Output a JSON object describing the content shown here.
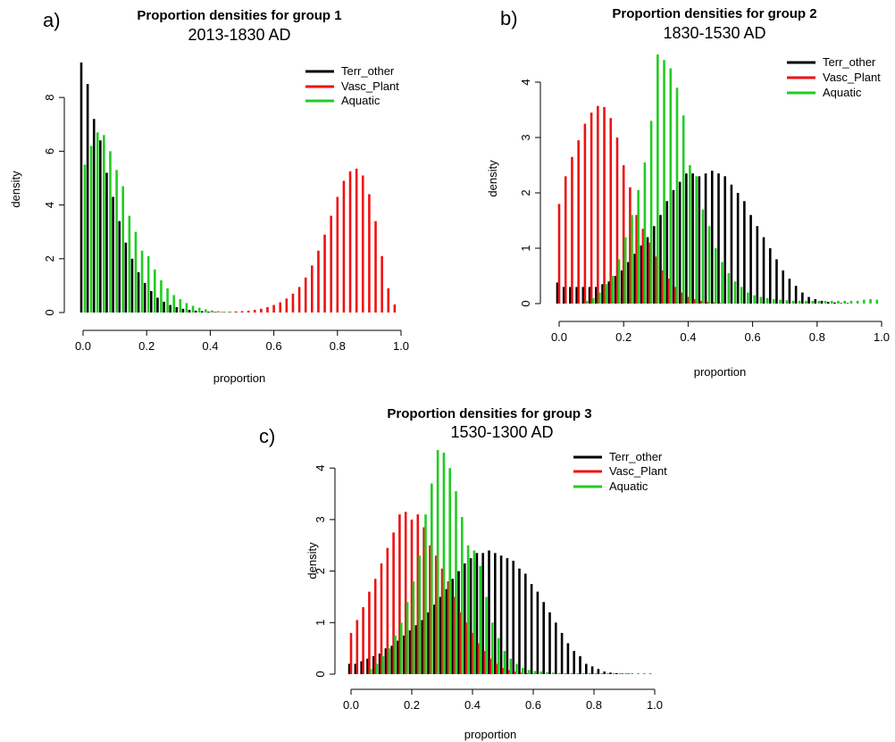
{
  "colors": {
    "Terr_other": "#000000",
    "Vasc_Plant": "#ee1111",
    "Aquatic": "#22cc22"
  },
  "chart_data": [
    {
      "id": "a",
      "type": "bar",
      "panel_label": "a)",
      "title": "Proportion densities for group 1",
      "subtitle": "2013-1830 AD",
      "xlabel": "proportion",
      "ylabel": "density",
      "xlim": [
        0,
        1
      ],
      "ylim": [
        0,
        9.3
      ],
      "xticks": [
        "0.0",
        "0.2",
        "0.4",
        "0.6",
        "0.8",
        "1.0"
      ],
      "yticks": [
        "0",
        "2",
        "4",
        "6",
        "8"
      ],
      "legend": [
        "Terr_other",
        "Vasc_Plant",
        "Aquatic"
      ],
      "legend_position": "top-right",
      "x": [
        0.0,
        0.02,
        0.04,
        0.06,
        0.08,
        0.1,
        0.12,
        0.14,
        0.16,
        0.18,
        0.2,
        0.22,
        0.24,
        0.26,
        0.28,
        0.3,
        0.32,
        0.34,
        0.36,
        0.38,
        0.4,
        0.42,
        0.44,
        0.46,
        0.48,
        0.5,
        0.52,
        0.54,
        0.56,
        0.58,
        0.6,
        0.62,
        0.64,
        0.66,
        0.68,
        0.7,
        0.72,
        0.74,
        0.76,
        0.78,
        0.8,
        0.82,
        0.84,
        0.86,
        0.88,
        0.9,
        0.92,
        0.94,
        0.96,
        0.98
      ],
      "series": [
        {
          "name": "Terr_other",
          "values": [
            9.3,
            8.5,
            7.2,
            6.4,
            5.2,
            4.3,
            3.4,
            2.6,
            2.0,
            1.5,
            1.1,
            0.8,
            0.55,
            0.4,
            0.28,
            0.2,
            0.14,
            0.1,
            0.07,
            0.05,
            0.03,
            0.02,
            0.01,
            0,
            0,
            0,
            0,
            0,
            0,
            0,
            0,
            0,
            0,
            0,
            0,
            0,
            0,
            0,
            0,
            0,
            0,
            0,
            0,
            0,
            0,
            0,
            0,
            0,
            0,
            0
          ]
        },
        {
          "name": "Vasc_Plant",
          "values": [
            0,
            0,
            0,
            0,
            0,
            0,
            0,
            0,
            0,
            0,
            0,
            0,
            0,
            0,
            0,
            0,
            0,
            0,
            0,
            0,
            0.01,
            0.02,
            0.02,
            0.03,
            0.04,
            0.05,
            0.07,
            0.1,
            0.14,
            0.2,
            0.28,
            0.38,
            0.52,
            0.7,
            0.95,
            1.3,
            1.75,
            2.3,
            2.9,
            3.6,
            4.3,
            4.9,
            5.25,
            5.35,
            5.1,
            4.4,
            3.4,
            2.1,
            0.9,
            0.3
          ]
        },
        {
          "name": "Aquatic",
          "values": [
            5.5,
            6.2,
            6.7,
            6.6,
            6.0,
            5.3,
            4.7,
            3.6,
            3.0,
            2.3,
            2.1,
            1.6,
            1.2,
            0.9,
            0.65,
            0.5,
            0.35,
            0.25,
            0.18,
            0.12,
            0.08,
            0.05,
            0.03,
            0.02,
            0.01,
            0,
            0,
            0,
            0,
            0,
            0,
            0,
            0,
            0,
            0,
            0,
            0,
            0,
            0,
            0,
            0,
            0,
            0,
            0,
            0,
            0,
            0,
            0,
            0,
            0
          ]
        }
      ]
    },
    {
      "id": "b",
      "type": "bar",
      "panel_label": "b)",
      "title": "Proportion densities for group 2",
      "subtitle": "1830-1530 AD",
      "xlabel": "proportion",
      "ylabel": "density",
      "xlim": [
        0,
        1
      ],
      "ylim": [
        0,
        4.5
      ],
      "xticks": [
        "0.0",
        "0.2",
        "0.4",
        "0.6",
        "0.8",
        "1.0"
      ],
      "yticks": [
        "0",
        "1",
        "2",
        "3",
        "4"
      ],
      "legend": [
        "Terr_other",
        "Vasc_Plant",
        "Aquatic"
      ],
      "legend_position": "top-right",
      "x": [
        0.0,
        0.02,
        0.04,
        0.06,
        0.08,
        0.1,
        0.12,
        0.14,
        0.16,
        0.18,
        0.2,
        0.22,
        0.24,
        0.26,
        0.28,
        0.3,
        0.32,
        0.34,
        0.36,
        0.38,
        0.4,
        0.42,
        0.44,
        0.46,
        0.48,
        0.5,
        0.52,
        0.54,
        0.56,
        0.58,
        0.6,
        0.62,
        0.64,
        0.66,
        0.68,
        0.7,
        0.72,
        0.74,
        0.76,
        0.78,
        0.8,
        0.82,
        0.84,
        0.86,
        0.88,
        0.9,
        0.92,
        0.94,
        0.96,
        0.98
      ],
      "series": [
        {
          "name": "Terr_other",
          "values": [
            0.38,
            0.3,
            0.3,
            0.3,
            0.3,
            0.3,
            0.3,
            0.35,
            0.4,
            0.5,
            0.6,
            0.75,
            0.9,
            1.05,
            1.2,
            1.4,
            1.6,
            1.85,
            2.05,
            2.2,
            2.35,
            2.35,
            2.3,
            2.35,
            2.4,
            2.35,
            2.3,
            2.15,
            2.0,
            1.85,
            1.6,
            1.4,
            1.2,
            1.0,
            0.8,
            0.6,
            0.45,
            0.32,
            0.2,
            0.12,
            0.08,
            0.05,
            0.03,
            0.02,
            0.01,
            0.01,
            0,
            0,
            0,
            0
          ]
        },
        {
          "name": "Vasc_Plant",
          "values": [
            1.8,
            2.3,
            2.65,
            2.95,
            3.25,
            3.45,
            3.57,
            3.55,
            3.35,
            3.0,
            2.5,
            2.1,
            1.6,
            1.35,
            1.1,
            0.85,
            0.6,
            0.45,
            0.3,
            0.2,
            0.12,
            0.08,
            0.05,
            0.03,
            0.02,
            0.01,
            0,
            0,
            0,
            0,
            0,
            0,
            0,
            0,
            0,
            0,
            0,
            0,
            0,
            0,
            0,
            0,
            0,
            0,
            0,
            0,
            0,
            0,
            0,
            0
          ]
        },
        {
          "name": "Aquatic",
          "values": [
            0,
            0,
            0,
            0,
            0.05,
            0.1,
            0.2,
            0.35,
            0.5,
            0.8,
            1.2,
            1.6,
            2.05,
            2.55,
            3.3,
            4.5,
            4.4,
            4.25,
            3.9,
            3.4,
            2.5,
            2.3,
            1.7,
            1.4,
            1.0,
            0.75,
            0.55,
            0.4,
            0.3,
            0.2,
            0.15,
            0.12,
            0.1,
            0.08,
            0.07,
            0.06,
            0.05,
            0.05,
            0.05,
            0.05,
            0.05,
            0.05,
            0.05,
            0.05,
            0.05,
            0.05,
            0.05,
            0.07,
            0.08,
            0.07
          ]
        }
      ]
    },
    {
      "id": "c",
      "type": "bar",
      "panel_label": "c)",
      "title": "Proportion densities for group 3",
      "subtitle": "1530-1300 AD",
      "xlabel": "proportion",
      "ylabel": "density",
      "xlim": [
        0,
        1
      ],
      "ylim": [
        0,
        4.35
      ],
      "xticks": [
        "0.0",
        "0.2",
        "0.4",
        "0.6",
        "0.8",
        "1.0"
      ],
      "yticks": [
        "0",
        "1",
        "2",
        "3",
        "4"
      ],
      "legend": [
        "Terr_other",
        "Vasc_Plant",
        "Aquatic"
      ],
      "legend_position": "top-right",
      "x": [
        0.0,
        0.02,
        0.04,
        0.06,
        0.08,
        0.1,
        0.12,
        0.14,
        0.16,
        0.18,
        0.2,
        0.22,
        0.24,
        0.26,
        0.28,
        0.3,
        0.32,
        0.34,
        0.36,
        0.38,
        0.4,
        0.42,
        0.44,
        0.46,
        0.48,
        0.5,
        0.52,
        0.54,
        0.56,
        0.58,
        0.6,
        0.62,
        0.64,
        0.66,
        0.68,
        0.7,
        0.72,
        0.74,
        0.76,
        0.78,
        0.8,
        0.82,
        0.84,
        0.86,
        0.88,
        0.9,
        0.92,
        0.94,
        0.96,
        0.98
      ],
      "series": [
        {
          "name": "Terr_other",
          "values": [
            0.2,
            0.2,
            0.25,
            0.3,
            0.35,
            0.4,
            0.5,
            0.55,
            0.65,
            0.75,
            0.85,
            0.95,
            1.05,
            1.2,
            1.35,
            1.5,
            1.65,
            1.85,
            2.0,
            2.15,
            2.25,
            2.35,
            2.35,
            2.4,
            2.35,
            2.3,
            2.25,
            2.2,
            2.05,
            1.95,
            1.75,
            1.6,
            1.4,
            1.2,
            1.0,
            0.8,
            0.6,
            0.45,
            0.35,
            0.2,
            0.15,
            0.1,
            0.05,
            0.03,
            0.02,
            0.01,
            0.01,
            0,
            0,
            0
          ]
        },
        {
          "name": "Vasc_Plant",
          "values": [
            0.8,
            1.05,
            1.3,
            1.6,
            1.85,
            2.15,
            2.45,
            2.75,
            3.1,
            3.15,
            3.0,
            3.1,
            2.85,
            2.5,
            2.3,
            2.05,
            1.8,
            1.5,
            1.2,
            1.0,
            0.8,
            0.6,
            0.45,
            0.3,
            0.2,
            0.12,
            0.08,
            0.05,
            0.03,
            0.02,
            0.01,
            0,
            0,
            0,
            0,
            0,
            0,
            0,
            0,
            0,
            0,
            0,
            0,
            0,
            0,
            0,
            0,
            0,
            0,
            0
          ]
        },
        {
          "name": "Aquatic",
          "values": [
            0,
            0,
            0,
            0.1,
            0.2,
            0.35,
            0.5,
            0.75,
            1.0,
            1.4,
            1.8,
            2.3,
            3.1,
            3.7,
            4.35,
            4.3,
            4.0,
            3.55,
            3.05,
            2.5,
            2.4,
            2.1,
            1.5,
            1.0,
            0.7,
            0.45,
            0.3,
            0.2,
            0.12,
            0.08,
            0.06,
            0.05,
            0.04,
            0.03,
            0.02,
            0.02,
            0.02,
            0.02,
            0.02,
            0.02,
            0.02,
            0.02,
            0.02,
            0.02,
            0.02,
            0.02,
            0.02,
            0.02,
            0.02,
            0.02
          ]
        }
      ]
    }
  ]
}
